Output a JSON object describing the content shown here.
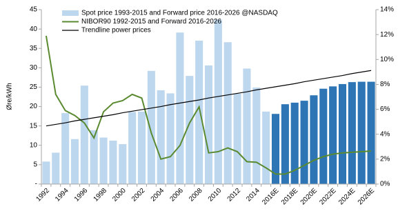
{
  "chart_data": {
    "type": "bar",
    "y_label": "Øre/kWh",
    "categories": [
      "1992",
      null,
      "1994",
      null,
      "1996",
      null,
      "1998",
      null,
      "2000",
      null,
      "2002",
      null,
      "2004",
      null,
      "2006",
      null,
      "2008",
      null,
      "2010",
      null,
      "2012",
      null,
      "2014",
      null,
      "2016E",
      null,
      "2018E",
      null,
      "2020E",
      null,
      "2022E",
      null,
      "2024E",
      null,
      "2026E"
    ],
    "ylim": [
      0,
      45
    ],
    "yticks": [
      {
        "value": 0,
        "label": "-"
      },
      5,
      10,
      15,
      20,
      25,
      30,
      35,
      40,
      45
    ],
    "y2lim": [
      0,
      14
    ],
    "y2ticks": [
      {
        "value": 0,
        "label": "0%"
      },
      {
        "value": 2,
        "label": "2%"
      },
      {
        "value": 4,
        "label": "4%"
      },
      {
        "value": 6,
        "label": "6%"
      },
      {
        "value": 8,
        "label": "8%"
      },
      {
        "value": 10,
        "label": "10%"
      },
      {
        "value": 12,
        "label": "12%"
      },
      {
        "value": 14,
        "label": "14%"
      }
    ],
    "grid": false,
    "legend": "top-left",
    "series": [
      {
        "name": "Spot price 1993-2015 and Forward price 2016-2026 @NASDAQ",
        "type": "bar",
        "axis": "y",
        "color": "#bdd7ee",
        "values": [
          5.8,
          8.1,
          18.3,
          11.6,
          25.4,
          13.9,
          12.0,
          11.2,
          10.3,
          18.6,
          18.7,
          29.2,
          24.2,
          23.4,
          39.1,
          27.9,
          37.0,
          30.6,
          42.4,
          36.6,
          23.3,
          29.8,
          24.9,
          18.7,
          18.1,
          20.6,
          21.0,
          21.5,
          22.9,
          24.6,
          25.2,
          25.8,
          26.3,
          26.4,
          26.4
        ],
        "colors": [
          "#bdd7ee",
          "#bdd7ee",
          "#bdd7ee",
          "#bdd7ee",
          "#bdd7ee",
          "#bdd7ee",
          "#bdd7ee",
          "#bdd7ee",
          "#bdd7ee",
          "#bdd7ee",
          "#bdd7ee",
          "#bdd7ee",
          "#bdd7ee",
          "#bdd7ee",
          "#bdd7ee",
          "#bdd7ee",
          "#bdd7ee",
          "#bdd7ee",
          "#bdd7ee",
          "#bdd7ee",
          "#bdd7ee",
          "#bdd7ee",
          "#bdd7ee",
          "#bdd7ee",
          "#2e75b6",
          "#2e75b6",
          "#2e75b6",
          "#2e75b6",
          "#2e75b6",
          "#2e75b6",
          "#2e75b6",
          "#2e75b6",
          "#2e75b6",
          "#2e75b6",
          "#2e75b6"
        ]
      },
      {
        "name": "NIBOR90 1992-2015 and Forward 2016-2026",
        "type": "line",
        "axis": "y2",
        "color": "#5a8a2f",
        "values": [
          11.9,
          7.2,
          5.9,
          5.5,
          4.9,
          3.7,
          5.8,
          6.5,
          6.7,
          7.2,
          6.9,
          4.1,
          2.0,
          2.2,
          3.1,
          4.9,
          6.2,
          2.5,
          2.6,
          2.9,
          2.6,
          1.8,
          1.75,
          1.3,
          0.8,
          0.8,
          1.1,
          1.5,
          1.9,
          2.2,
          2.4,
          2.5,
          2.55,
          2.6,
          2.65
        ]
      },
      {
        "name": "Trendline power prices",
        "type": "line",
        "axis": "y",
        "color": "#000000",
        "values": [
          15.0,
          15.4,
          15.8,
          16.3,
          16.7,
          17.1,
          17.5,
          17.9,
          18.4,
          18.8,
          19.2,
          19.6,
          20.0,
          20.5,
          20.9,
          21.3,
          21.7,
          22.2,
          22.6,
          23.0,
          23.4,
          23.8,
          24.3,
          24.7,
          25.1,
          25.5,
          25.9,
          26.4,
          26.8,
          27.2,
          27.6,
          28.0,
          28.5,
          28.9,
          29.3
        ]
      }
    ]
  }
}
